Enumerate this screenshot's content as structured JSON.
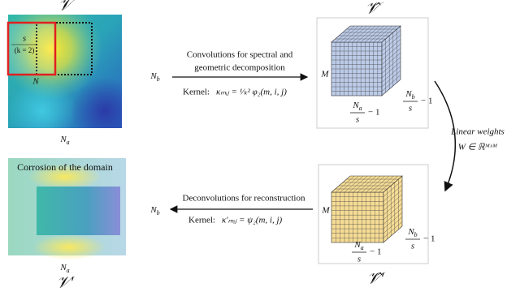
{
  "top_left": {
    "title": "𝒱",
    "window_size": "s",
    "kernel_note": "(k = 2)",
    "window_label": "N",
    "height_label": {
      "main": "N",
      "sub": "b"
    },
    "width_label": {
      "main": "N",
      "sub": "a"
    }
  },
  "conv_arrow": {
    "lines": [
      "Convolutions for spectral and",
      "geometric decomposition"
    ],
    "kernel": "Kernel:",
    "formula": "κₘᵢⱼ = ¹⁄ₖ² φ₂(m, i, j)"
  },
  "top_right": {
    "title": "𝒱̂",
    "depth_label": "M",
    "width_fraction": {
      "num": {
        "main": "N",
        "sub": "a"
      },
      "den": "s",
      "rest": "− 1"
    },
    "height_fraction": {
      "num": {
        "main": "N",
        "sub": "b"
      },
      "den": "s",
      "rest": "− 1"
    }
  },
  "weights_arrow": {
    "lines": [
      "Linear weights",
      "W ∈ ℝᴹˣᴹ"
    ]
  },
  "bottom_right": {
    "title": "𝒱̂′",
    "depth_label": "M",
    "width_fraction": {
      "num": {
        "main": "N",
        "sub": "a"
      },
      "den": "s",
      "rest": "− 1"
    },
    "height_fraction": {
      "num": {
        "main": "N",
        "sub": "b"
      },
      "den": "s",
      "rest": "− 1"
    }
  },
  "deconv_arrow": {
    "lines": [
      "Deconvolutions for reconstruction"
    ],
    "kernel": "Kernel:",
    "formula": "κ′ₘᵢⱼ = ψ₂(m, i, j)"
  },
  "bottom_left": {
    "caption": "Corrosion of the domain",
    "title": "𝒱′",
    "height_label": {
      "main": "N",
      "sub": "b"
    },
    "width_label": {
      "main": "N",
      "sub": "a"
    }
  }
}
